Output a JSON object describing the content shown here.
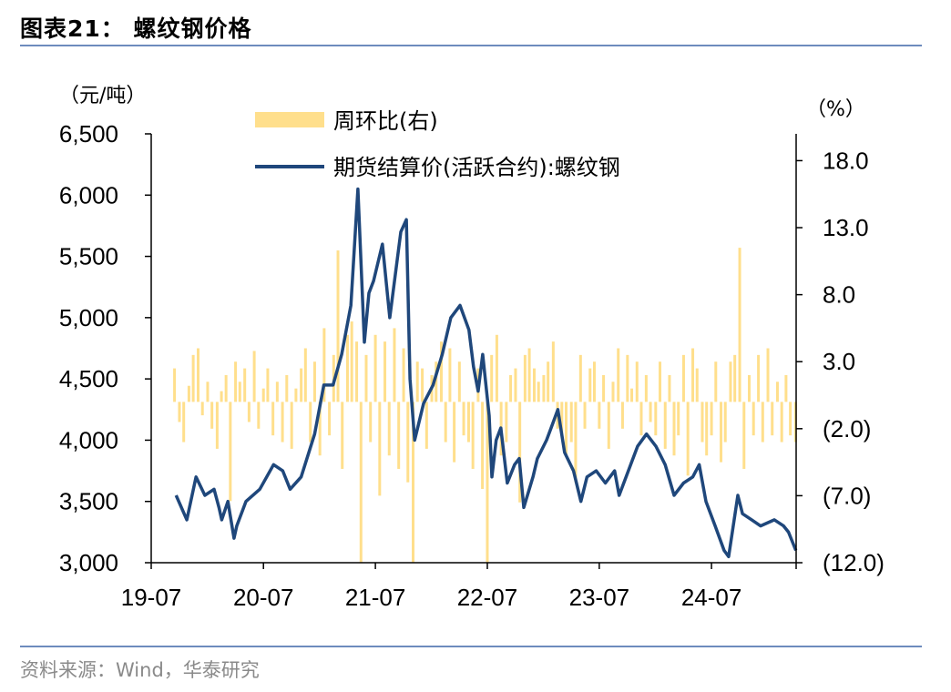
{
  "header": {
    "title": "图表21：  螺纹钢价格"
  },
  "footer": {
    "source": "资料来源：Wind，华泰研究"
  },
  "colors": {
    "bars": "#FFDF8C",
    "line": "#1F477B",
    "rule": "#6D8BBD"
  },
  "chart_data": {
    "type": "bar+line",
    "left_axis": {
      "unit": "（元/吨）",
      "ylim": [
        3000,
        6500
      ],
      "ticks": [
        "3,000",
        "3,500",
        "4,000",
        "4,500",
        "5,000",
        "5,500",
        "6,000",
        "6,500"
      ],
      "tick_values": [
        3000,
        3500,
        4000,
        4500,
        5000,
        5500,
        6000,
        6500
      ]
    },
    "right_axis": {
      "unit": "（%）",
      "ylim": [
        -12,
        20
      ],
      "ticks": [
        "(12.0)",
        "(7.0)",
        "(2.0)",
        "3.0",
        "8.0",
        "13.0",
        "18.0"
      ],
      "tick_values": [
        -12,
        -7,
        -2,
        3,
        8,
        13,
        18
      ]
    },
    "x_axis": {
      "range": [
        "2019-07-01",
        "2025-04-03"
      ],
      "ticks": [
        "19-07",
        "20-07",
        "21-07",
        "22-07",
        "23-07",
        "24-07"
      ],
      "tick_dates": [
        "2019-07-01",
        "2020-07-01",
        "2021-07-01",
        "2022-07-01",
        "2023-07-01",
        "2024-07-01"
      ]
    },
    "legend": {
      "position": "top",
      "bars_label": "周环比(右)",
      "line_label": "期货结算价(活跃合约):螺纹钢"
    },
    "series": [
      {
        "name": "周环比(右)",
        "type": "bar",
        "axis": "right",
        "points": [
          [
            "2019-09-15",
            2.5
          ],
          [
            "2019-10-01",
            -1.5
          ],
          [
            "2019-10-15",
            -3.0
          ],
          [
            "2019-11-01",
            1.2
          ],
          [
            "2019-11-15",
            3.5
          ],
          [
            "2019-12-01",
            4.0
          ],
          [
            "2019-12-15",
            -1.0
          ],
          [
            "2020-01-01",
            1.5
          ],
          [
            "2020-01-15",
            -2.0
          ],
          [
            "2020-02-01",
            -3.5
          ],
          [
            "2020-02-15",
            0.8
          ],
          [
            "2020-03-01",
            2.0
          ],
          [
            "2020-03-15",
            -7.4
          ],
          [
            "2020-04-01",
            3.0
          ],
          [
            "2020-04-15",
            1.5
          ],
          [
            "2020-05-01",
            2.5
          ],
          [
            "2020-05-15",
            -1.5
          ],
          [
            "2020-06-01",
            3.8
          ],
          [
            "2020-06-15",
            -2.0
          ],
          [
            "2020-07-01",
            1.0
          ],
          [
            "2020-07-15",
            2.5
          ],
          [
            "2020-08-01",
            -2.5
          ],
          [
            "2020-08-15",
            1.5
          ],
          [
            "2020-09-01",
            -3.0
          ],
          [
            "2020-09-15",
            2.0
          ],
          [
            "2020-10-01",
            -3.5
          ],
          [
            "2020-10-15",
            1.0
          ],
          [
            "2020-11-01",
            2.5
          ],
          [
            "2020-11-15",
            4.0
          ],
          [
            "2020-12-01",
            -3.0
          ],
          [
            "2020-12-15",
            3.0
          ],
          [
            "2021-01-01",
            -4.0
          ],
          [
            "2021-01-15",
            5.5
          ],
          [
            "2021-02-01",
            -2.5
          ],
          [
            "2021-02-15",
            3.5
          ],
          [
            "2021-03-01",
            11.3
          ],
          [
            "2021-03-15",
            -5.0
          ],
          [
            "2021-04-01",
            5.0
          ],
          [
            "2021-04-15",
            6.0
          ],
          [
            "2021-05-01",
            4.5
          ],
          [
            "2021-05-15",
            -12.0
          ],
          [
            "2021-06-01",
            3.5
          ],
          [
            "2021-06-15",
            -3.0
          ],
          [
            "2021-07-01",
            5.0
          ],
          [
            "2021-07-15",
            -7.0
          ],
          [
            "2021-08-01",
            4.5
          ],
          [
            "2021-08-15",
            -4.0
          ],
          [
            "2021-09-01",
            5.5
          ],
          [
            "2021-09-15",
            -5.0
          ],
          [
            "2021-10-01",
            4.0
          ],
          [
            "2021-10-15",
            -6.0
          ],
          [
            "2021-11-01",
            -12.0
          ],
          [
            "2021-11-15",
            3.0
          ],
          [
            "2021-12-01",
            2.5
          ],
          [
            "2021-12-15",
            -3.5
          ],
          [
            "2022-01-01",
            2.0
          ],
          [
            "2022-01-15",
            3.0
          ],
          [
            "2022-02-01",
            4.5
          ],
          [
            "2022-02-15",
            -3.0
          ],
          [
            "2022-03-01",
            4.0
          ],
          [
            "2022-03-15",
            -4.5
          ],
          [
            "2022-04-01",
            3.0
          ],
          [
            "2022-04-15",
            -2.5
          ],
          [
            "2022-05-01",
            -3.0
          ],
          [
            "2022-05-15",
            -5.0
          ],
          [
            "2022-06-01",
            2.5
          ],
          [
            "2022-06-15",
            -6.5
          ],
          [
            "2022-07-01",
            -12.0
          ],
          [
            "2022-07-15",
            3.5
          ],
          [
            "2022-08-01",
            5.0
          ],
          [
            "2022-08-15",
            -4.0
          ],
          [
            "2022-09-01",
            -3.0
          ],
          [
            "2022-09-15",
            2.0
          ],
          [
            "2022-10-01",
            2.5
          ],
          [
            "2022-10-15",
            -7.5
          ],
          [
            "2022-11-01",
            3.5
          ],
          [
            "2022-11-15",
            4.0
          ],
          [
            "2022-12-01",
            2.5
          ],
          [
            "2022-12-15",
            1.5
          ],
          [
            "2023-01-01",
            2.0
          ],
          [
            "2023-01-15",
            3.0
          ],
          [
            "2023-02-01",
            4.5
          ],
          [
            "2023-02-15",
            -2.0
          ],
          [
            "2023-03-01",
            -2.5
          ],
          [
            "2023-03-15",
            -4.0
          ],
          [
            "2023-04-01",
            -3.0
          ],
          [
            "2023-04-15",
            -6.0
          ],
          [
            "2023-05-01",
            3.5
          ],
          [
            "2023-05-15",
            -2.0
          ],
          [
            "2023-06-01",
            2.5
          ],
          [
            "2023-06-15",
            3.0
          ],
          [
            "2023-07-01",
            -2.0
          ],
          [
            "2023-07-15",
            2.0
          ],
          [
            "2023-08-01",
            -3.5
          ],
          [
            "2023-08-15",
            1.5
          ],
          [
            "2023-09-01",
            4.0
          ],
          [
            "2023-09-15",
            -2.0
          ],
          [
            "2023-10-01",
            3.5
          ],
          [
            "2023-10-15",
            1.0
          ],
          [
            "2023-11-01",
            3.0
          ],
          [
            "2023-11-15",
            -2.5
          ],
          [
            "2023-12-01",
            2.0
          ],
          [
            "2023-12-15",
            -1.5
          ],
          [
            "2024-01-01",
            -2.5
          ],
          [
            "2024-01-15",
            3.0
          ],
          [
            "2024-02-01",
            -3.5
          ],
          [
            "2024-02-15",
            2.0
          ],
          [
            "2024-03-01",
            -4.0
          ],
          [
            "2024-03-15",
            -2.5
          ],
          [
            "2024-04-01",
            3.5
          ],
          [
            "2024-04-15",
            -5.5
          ],
          [
            "2024-05-01",
            4.0
          ],
          [
            "2024-05-15",
            2.5
          ],
          [
            "2024-06-01",
            -3.0
          ],
          [
            "2024-06-15",
            -4.0
          ],
          [
            "2024-07-01",
            -2.5
          ],
          [
            "2024-07-15",
            3.0
          ],
          [
            "2024-08-01",
            -4.5
          ],
          [
            "2024-08-15",
            -3.0
          ],
          [
            "2024-09-01",
            3.0
          ],
          [
            "2024-09-15",
            3.5
          ],
          [
            "2024-10-01",
            11.5
          ],
          [
            "2024-10-15",
            -5.0
          ],
          [
            "2024-11-01",
            2.0
          ],
          [
            "2024-11-15",
            -2.5
          ],
          [
            "2024-12-01",
            3.5
          ],
          [
            "2024-12-15",
            -3.0
          ],
          [
            "2025-01-01",
            4.0
          ],
          [
            "2025-01-15",
            -2.5
          ],
          [
            "2025-02-01",
            1.5
          ],
          [
            "2025-02-15",
            -3.0
          ],
          [
            "2025-03-01",
            2.0
          ],
          [
            "2025-03-15",
            -2.5
          ],
          [
            "2025-04-01",
            -3.0
          ]
        ]
      },
      {
        "name": "期货结算价(活跃合约):螺纹钢",
        "type": "line",
        "axis": "left",
        "points": [
          [
            "2019-09-20",
            3550
          ],
          [
            "2019-10-25",
            3350
          ],
          [
            "2019-11-24",
            3700
          ],
          [
            "2019-12-23",
            3550
          ],
          [
            "2020-01-22",
            3600
          ],
          [
            "2020-02-07",
            3450
          ],
          [
            "2020-02-16",
            3350
          ],
          [
            "2020-03-07",
            3500
          ],
          [
            "2020-03-27",
            3200
          ],
          [
            "2020-04-05",
            3300
          ],
          [
            "2020-05-05",
            3500
          ],
          [
            "2020-06-19",
            3600
          ],
          [
            "2020-08-03",
            3800
          ],
          [
            "2020-09-02",
            3750
          ],
          [
            "2020-09-26",
            3600
          ],
          [
            "2020-11-01",
            3700
          ],
          [
            "2020-12-15",
            4050
          ],
          [
            "2021-01-14",
            4450
          ],
          [
            "2021-02-13",
            4450
          ],
          [
            "2021-03-13",
            4700
          ],
          [
            "2021-04-12",
            5100
          ],
          [
            "2021-05-05",
            6050
          ],
          [
            "2021-05-26",
            4800
          ],
          [
            "2021-06-10",
            5200
          ],
          [
            "2021-06-25",
            5300
          ],
          [
            "2021-07-24",
            5600
          ],
          [
            "2021-08-17",
            5000
          ],
          [
            "2021-09-22",
            5700
          ],
          [
            "2021-10-10",
            5800
          ],
          [
            "2021-10-22",
            4500
          ],
          [
            "2021-11-06",
            4000
          ],
          [
            "2021-12-05",
            4300
          ],
          [
            "2022-01-05",
            4450
          ],
          [
            "2022-02-04",
            4700
          ],
          [
            "2022-03-04",
            5000
          ],
          [
            "2022-04-03",
            5100
          ],
          [
            "2022-05-02",
            4900
          ],
          [
            "2022-05-17",
            4600
          ],
          [
            "2022-06-01",
            4400
          ],
          [
            "2022-06-16",
            4700
          ],
          [
            "2022-07-07",
            4200
          ],
          [
            "2022-07-16",
            3700
          ],
          [
            "2022-07-30",
            4000
          ],
          [
            "2022-08-14",
            4100
          ],
          [
            "2022-09-04",
            3650
          ],
          [
            "2022-09-28",
            3800
          ],
          [
            "2022-10-13",
            3850
          ],
          [
            "2022-10-28",
            3450
          ],
          [
            "2022-11-27",
            3700
          ],
          [
            "2022-12-11",
            3850
          ],
          [
            "2023-01-10",
            4000
          ],
          [
            "2023-01-25",
            4100
          ],
          [
            "2023-02-16",
            4250
          ],
          [
            "2023-03-10",
            3900
          ],
          [
            "2023-04-08",
            3750
          ],
          [
            "2023-05-02",
            3500
          ],
          [
            "2023-05-22",
            3700
          ],
          [
            "2023-06-21",
            3750
          ],
          [
            "2023-07-21",
            3650
          ],
          [
            "2023-08-20",
            3750
          ],
          [
            "2023-09-04",
            3550
          ],
          [
            "2023-10-04",
            3750
          ],
          [
            "2023-11-03",
            3950
          ],
          [
            "2023-12-02",
            4050
          ],
          [
            "2024-01-02",
            3950
          ],
          [
            "2024-02-01",
            3800
          ],
          [
            "2024-03-01",
            3550
          ],
          [
            "2024-04-01",
            3650
          ],
          [
            "2024-05-01",
            3700
          ],
          [
            "2024-05-22",
            3800
          ],
          [
            "2024-06-13",
            3500
          ],
          [
            "2024-07-13",
            3300
          ],
          [
            "2024-08-11",
            3100
          ],
          [
            "2024-08-26",
            3050
          ],
          [
            "2024-09-25",
            3550
          ],
          [
            "2024-10-10",
            3400
          ],
          [
            "2024-11-09",
            3350
          ],
          [
            "2024-12-08",
            3300
          ],
          [
            "2025-01-22",
            3350
          ],
          [
            "2025-02-21",
            3300
          ],
          [
            "2025-03-09",
            3250
          ],
          [
            "2025-04-02",
            3100
          ]
        ]
      }
    ]
  }
}
